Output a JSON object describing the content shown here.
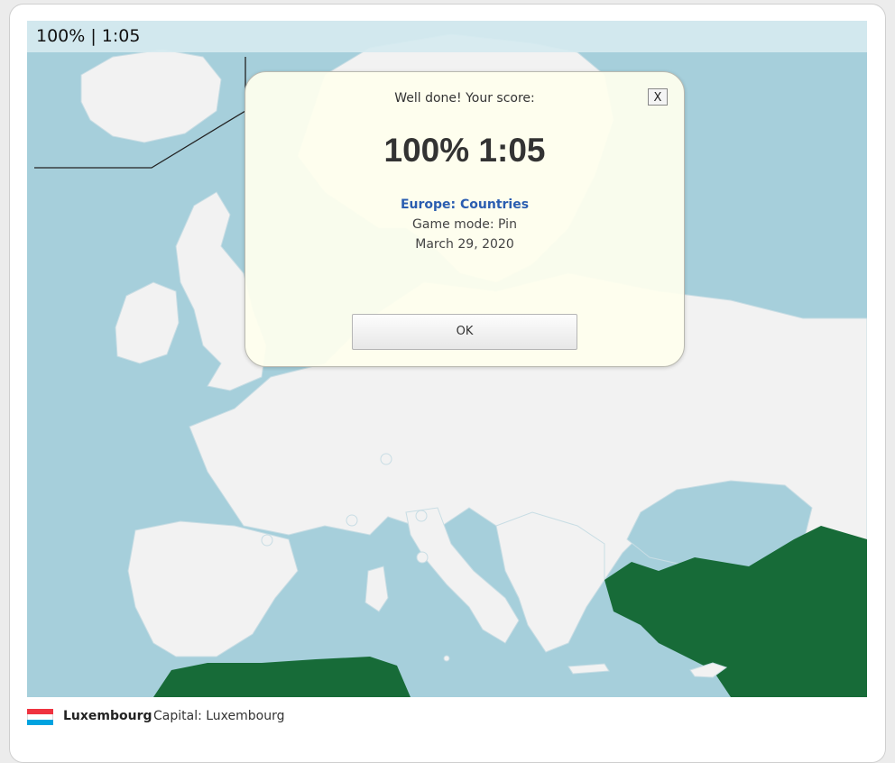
{
  "status": {
    "text": "100% | 1:05"
  },
  "modal": {
    "heading": "Well done! Your score:",
    "close_label": "X",
    "score": "100% 1:05",
    "quiz_title": "Europe: Countries",
    "mode": "Game mode: Pin",
    "date": "March 29, 2020",
    "ok_label": "OK"
  },
  "footer": {
    "country": "Luxembourg",
    "capital": "Capital: Luxembourg",
    "flag_colors": [
      "#ef3340",
      "#ffffff",
      "#00a3e0"
    ]
  },
  "colors": {
    "sea": "#a6cfdb",
    "land": "#f2f2f2",
    "highlight": "#176b38"
  }
}
